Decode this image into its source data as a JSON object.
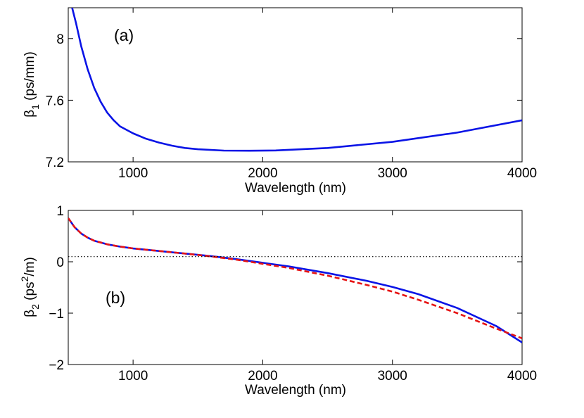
{
  "chart_data": [
    {
      "type": "line",
      "panel_label": "(a)",
      "xlabel": "Wavelength (nm)",
      "ylabel_main": "β",
      "ylabel_sub": "1",
      "ylabel_units": "(ps/mm)",
      "xlim": [
        500,
        4000
      ],
      "ylim": [
        7.2,
        8.2
      ],
      "xticks": [
        1000,
        2000,
        3000,
        4000
      ],
      "xtick_labels": [
        "1000",
        "2000",
        "3000",
        "4000"
      ],
      "yticks": [
        7.2,
        7.6,
        8.0
      ],
      "ytick_labels": [
        "7.2",
        "7.6",
        "8"
      ],
      "series": [
        {
          "name": "beta1",
          "color": "#0a14e6",
          "style": "solid",
          "x": [
            530,
            560,
            600,
            650,
            700,
            750,
            800,
            850,
            900,
            1000,
            1100,
            1200,
            1300,
            1400,
            1500,
            1700,
            1900,
            2100,
            2500,
            3000,
            3500,
            4000
          ],
          "y": [
            8.2,
            8.1,
            7.95,
            7.8,
            7.68,
            7.59,
            7.52,
            7.47,
            7.43,
            7.385,
            7.35,
            7.325,
            7.305,
            7.29,
            7.282,
            7.273,
            7.272,
            7.274,
            7.29,
            7.33,
            7.39,
            7.47
          ]
        }
      ]
    },
    {
      "type": "line",
      "panel_label": "(b)",
      "xlabel": "Wavelength (nm)",
      "ylabel_main": "β",
      "ylabel_sub": "2",
      "ylabel_units_pre": "(ps",
      "ylabel_units_sup": "2",
      "ylabel_units_post": "/m)",
      "xlim": [
        500,
        4000
      ],
      "ylim": [
        -2,
        1
      ],
      "xticks": [
        1000,
        2000,
        3000,
        4000
      ],
      "xtick_labels": [
        "1000",
        "2000",
        "3000",
        "4000"
      ],
      "yticks": [
        -2,
        -1,
        0,
        1
      ],
      "ytick_labels": [
        "−2",
        "−1",
        "0",
        "1"
      ],
      "series": [
        {
          "name": "beta2",
          "color": "#0a14e6",
          "style": "solid",
          "x": [
            500,
            550,
            600,
            650,
            700,
            800,
            900,
            1000,
            1200,
            1400,
            1600,
            1800,
            2000,
            2200,
            2500,
            2800,
            3000,
            3200,
            3500,
            3800,
            4000
          ],
          "y": [
            0.85,
            0.67,
            0.55,
            0.47,
            0.41,
            0.34,
            0.295,
            0.26,
            0.21,
            0.16,
            0.11,
            0.05,
            -0.02,
            -0.09,
            -0.22,
            -0.37,
            -0.49,
            -0.63,
            -0.9,
            -1.25,
            -1.57
          ]
        },
        {
          "name": "beta2-approx",
          "color": "#e61414",
          "style": "dashed",
          "x": [
            500,
            550,
            600,
            650,
            700,
            800,
            900,
            1000,
            1200,
            1400,
            1600,
            1800,
            2000,
            2200,
            2500,
            2800,
            3000,
            3200,
            3500,
            3800,
            4000
          ],
          "y": [
            0.85,
            0.67,
            0.55,
            0.47,
            0.41,
            0.34,
            0.295,
            0.26,
            0.21,
            0.16,
            0.105,
            0.04,
            -0.04,
            -0.12,
            -0.27,
            -0.45,
            -0.58,
            -0.74,
            -1.0,
            -1.3,
            -1.49
          ]
        },
        {
          "name": "zero-reference",
          "color": "#000000",
          "style": "dotted",
          "x": [
            500,
            4000
          ],
          "y": [
            0.1,
            0.1
          ]
        }
      ]
    }
  ]
}
